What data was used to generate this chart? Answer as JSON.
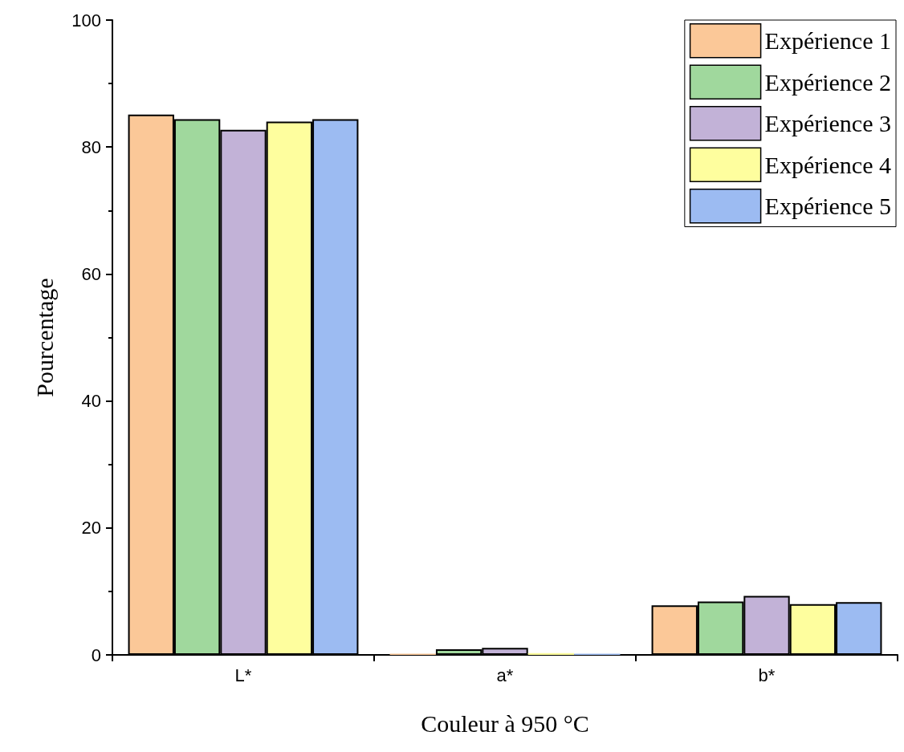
{
  "chart_data": {
    "type": "bar",
    "xlabel": "Couleur à 950 °C",
    "ylabel": "Pourcentage",
    "categories": [
      "L*",
      "a*",
      "b*"
    ],
    "series": [
      {
        "name": "Expérience 1",
        "color": "#fbc898",
        "values": [
          85.1,
          0.2,
          7.8
        ]
      },
      {
        "name": "Expérience 2",
        "color": "#a0d89d",
        "values": [
          84.4,
          0.9,
          8.4
        ]
      },
      {
        "name": "Expérience 3",
        "color": "#c2b2d7",
        "values": [
          82.7,
          1.1,
          9.3
        ]
      },
      {
        "name": "Expérience 4",
        "color": "#fefe9e",
        "values": [
          84.0,
          0.3,
          8.0
        ]
      },
      {
        "name": "Expérience 5",
        "color": "#9cbbf2",
        "values": [
          84.4,
          0.2,
          8.3
        ]
      }
    ],
    "ylim": [
      0,
      100
    ],
    "yticks": [
      0,
      20,
      40,
      60,
      80,
      100
    ],
    "grid": false,
    "legend": "top right"
  }
}
